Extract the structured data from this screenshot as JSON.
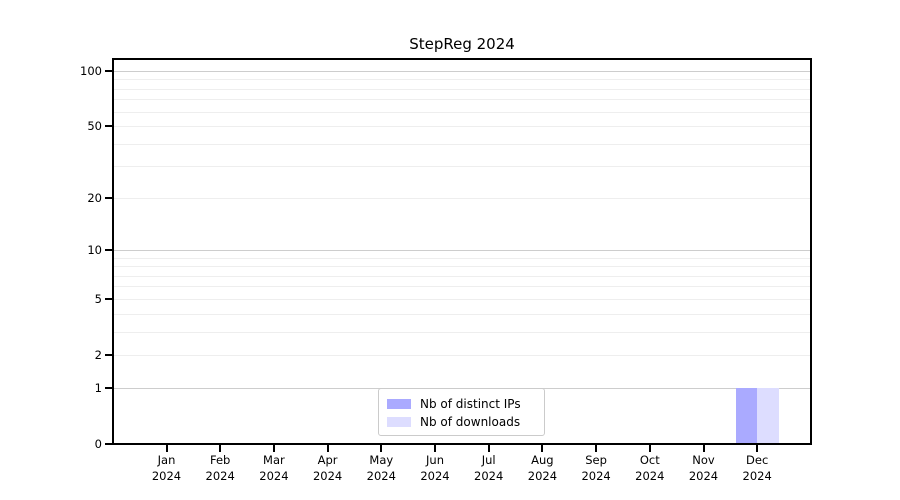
{
  "chart_data": {
    "type": "bar",
    "title": "StepReg 2024",
    "x_axis": {
      "categories": [
        "Jan",
        "Feb",
        "Mar",
        "Apr",
        "May",
        "Jun",
        "Jul",
        "Aug",
        "Sep",
        "Oct",
        "Nov",
        "Dec"
      ],
      "year_label": "2024"
    },
    "y_axis": {
      "scale": "log1p",
      "tick_values": [
        0,
        1,
        2,
        5,
        10,
        20,
        50,
        100
      ],
      "tick_labels": [
        "0",
        "1",
        "2",
        "5",
        "10",
        "20",
        "50",
        "100"
      ],
      "major_gridlines": [
        1,
        10,
        100
      ],
      "minor_gridlines": [
        2,
        3,
        4,
        5,
        6,
        7,
        8,
        9,
        20,
        30,
        40,
        50,
        60,
        70,
        80,
        90
      ],
      "ylim": [
        0,
        100
      ]
    },
    "series": [
      {
        "name": "Nb of distinct IPs",
        "color": "#aaaaff",
        "values": [
          0,
          0,
          0,
          0,
          0,
          0,
          0,
          0,
          0,
          0,
          0,
          1
        ]
      },
      {
        "name": "Nb of downloads",
        "color": "#ddddff",
        "values": [
          0,
          0,
          0,
          0,
          0,
          0,
          0,
          0,
          0,
          0,
          0,
          1
        ]
      }
    ],
    "legend": {
      "position": "bottom-center",
      "entries": [
        "Nb of distinct IPs",
        "Nb of downloads"
      ]
    },
    "grid": true,
    "colors": {
      "major_grid": "#cdcdcd",
      "minor_grid": "#eeeeee",
      "axis": "#000000",
      "background": "#ffffff"
    }
  }
}
